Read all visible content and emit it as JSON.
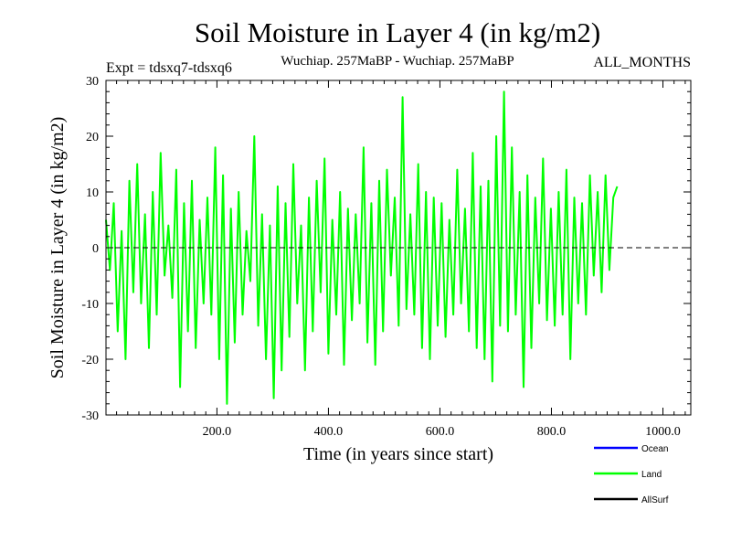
{
  "chart_data": {
    "type": "line",
    "title": "Soil Moisture in Layer 4 (in kg/m2)",
    "subtitle_left": "Expt = tdsxq7-tdsxq6",
    "subtitle_center": "Wuchiap. 257MaBP - Wuchiap. 257MaBP",
    "subtitle_right": "ALL_MONTHS",
    "xlabel": "Time (in years since start)",
    "ylabel": "Soil Moisture in Layer 4 (in kg/m2)",
    "xlim": [
      1,
      1050
    ],
    "ylim": [
      -30,
      30
    ],
    "x_ticks": [
      200,
      400,
      600,
      800,
      1000
    ],
    "x_tick_labels": [
      "200.0",
      "400.0",
      "600.0",
      "800.0",
      "1000.0"
    ],
    "y_ticks": [
      -30,
      -20,
      -10,
      0,
      10,
      20,
      30
    ],
    "y_tick_labels": [
      "-30",
      "-20",
      "-10",
      "0",
      "10",
      "20",
      "30"
    ],
    "zero_line": true,
    "legend_position": "bottom-right",
    "series": [
      {
        "name": "Ocean",
        "color": "#0000ff",
        "values": []
      },
      {
        "name": "Land",
        "color": "#00ff00",
        "x_start": 1,
        "x_step": 7,
        "values": [
          5,
          -4,
          8,
          -15,
          3,
          -20,
          12,
          -8,
          15,
          -10,
          6,
          -18,
          10,
          -12,
          17,
          -5,
          4,
          -9,
          14,
          -25,
          8,
          -15,
          12,
          -18,
          5,
          -10,
          9,
          -12,
          18,
          -20,
          13,
          -28,
          7,
          -17,
          10,
          -12,
          3,
          -6,
          20,
          -14,
          6,
          -20,
          4,
          -27,
          11,
          -22,
          8,
          -16,
          15,
          -10,
          4,
          -22,
          9,
          -15,
          12,
          -8,
          16,
          -19,
          5,
          -12,
          10,
          -21,
          7,
          -13,
          6,
          -10,
          18,
          -17,
          8,
          -21,
          12,
          -15,
          14,
          -5,
          9,
          -14,
          27,
          -11,
          6,
          -12,
          15,
          -18,
          10,
          -20,
          9,
          -14,
          8,
          -16,
          5,
          -12,
          14,
          -10,
          7,
          -15,
          17,
          -18,
          11,
          -20,
          12,
          -24,
          20,
          -14,
          28,
          -15,
          18,
          -12,
          10,
          -25,
          13,
          -18,
          9,
          -10,
          16,
          -13,
          7,
          -14,
          10,
          -12,
          14,
          -20,
          9,
          -10,
          8,
          -12,
          13,
          -5,
          10,
          -8,
          13,
          -4,
          9,
          11
        ]
      },
      {
        "name": "AllSurf",
        "color": "#000000",
        "values": []
      }
    ]
  }
}
